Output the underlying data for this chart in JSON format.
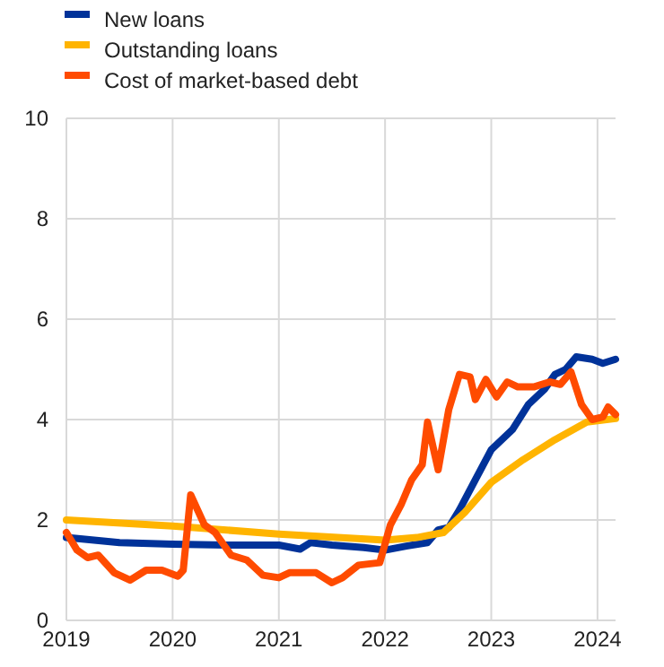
{
  "chart_data": {
    "type": "line",
    "legend": "top left",
    "grid": true,
    "xlim": [
      2019,
      2024.17
    ],
    "xticks": [
      2019,
      2020,
      2021,
      2022,
      2023,
      2024
    ],
    "ylim": [
      0,
      10
    ],
    "yticks": [
      0,
      2,
      4,
      6,
      8,
      10
    ],
    "series": [
      {
        "name": "New loans",
        "color": "#003299",
        "x": [
          2019,
          2019.5,
          2020,
          2020.5,
          2021,
          2021.2,
          2021.3,
          2021.5,
          2021.8,
          2022,
          2022.2,
          2022.4,
          2022.5,
          2022.6,
          2022.7,
          2022.85,
          2023,
          2023.2,
          2023.35,
          2023.5,
          2023.6,
          2023.7,
          2023.8,
          2023.95,
          2024.05,
          2024.17
        ],
        "values": [
          1.65,
          1.55,
          1.52,
          1.5,
          1.5,
          1.42,
          1.55,
          1.5,
          1.45,
          1.4,
          1.48,
          1.55,
          1.8,
          1.85,
          2.2,
          2.8,
          3.4,
          3.8,
          4.3,
          4.6,
          4.9,
          5.0,
          5.25,
          5.2,
          5.12,
          5.2
        ]
      },
      {
        "name": "Outstanding loans",
        "color": "#ffb400",
        "x": [
          2019,
          2020,
          2021,
          2022,
          2022.3,
          2022.55,
          2022.75,
          2023,
          2023.3,
          2023.6,
          2023.9,
          2024.17
        ],
        "values": [
          2.0,
          1.88,
          1.72,
          1.6,
          1.65,
          1.75,
          2.15,
          2.75,
          3.2,
          3.6,
          3.95,
          4.02
        ]
      },
      {
        "name": "Cost of market-based debt",
        "color": "#ff4b00",
        "x": [
          2019,
          2019.1,
          2019.2,
          2019.3,
          2019.45,
          2019.6,
          2019.75,
          2019.9,
          2020.05,
          2020.1,
          2020.17,
          2020.3,
          2020.4,
          2020.55,
          2020.7,
          2020.85,
          2021,
          2021.1,
          2021.35,
          2021.5,
          2021.6,
          2021.75,
          2021.95,
          2022.05,
          2022.15,
          2022.25,
          2022.35,
          2022.4,
          2022.5,
          2022.6,
          2022.7,
          2022.8,
          2022.85,
          2022.95,
          2023.05,
          2023.15,
          2023.25,
          2023.4,
          2023.55,
          2023.65,
          2023.75,
          2023.85,
          2023.95,
          2024.05,
          2024.1,
          2024.17
        ],
        "values": [
          1.75,
          1.4,
          1.25,
          1.3,
          0.95,
          0.8,
          1.0,
          1.0,
          0.88,
          1.0,
          2.5,
          1.9,
          1.75,
          1.3,
          1.2,
          0.9,
          0.85,
          0.95,
          0.95,
          0.75,
          0.85,
          1.1,
          1.15,
          1.9,
          2.3,
          2.8,
          3.1,
          3.95,
          3.0,
          4.2,
          4.9,
          4.85,
          4.4,
          4.8,
          4.45,
          4.75,
          4.65,
          4.65,
          4.75,
          4.7,
          4.95,
          4.3,
          4.0,
          4.05,
          4.25,
          4.1
        ]
      }
    ]
  }
}
